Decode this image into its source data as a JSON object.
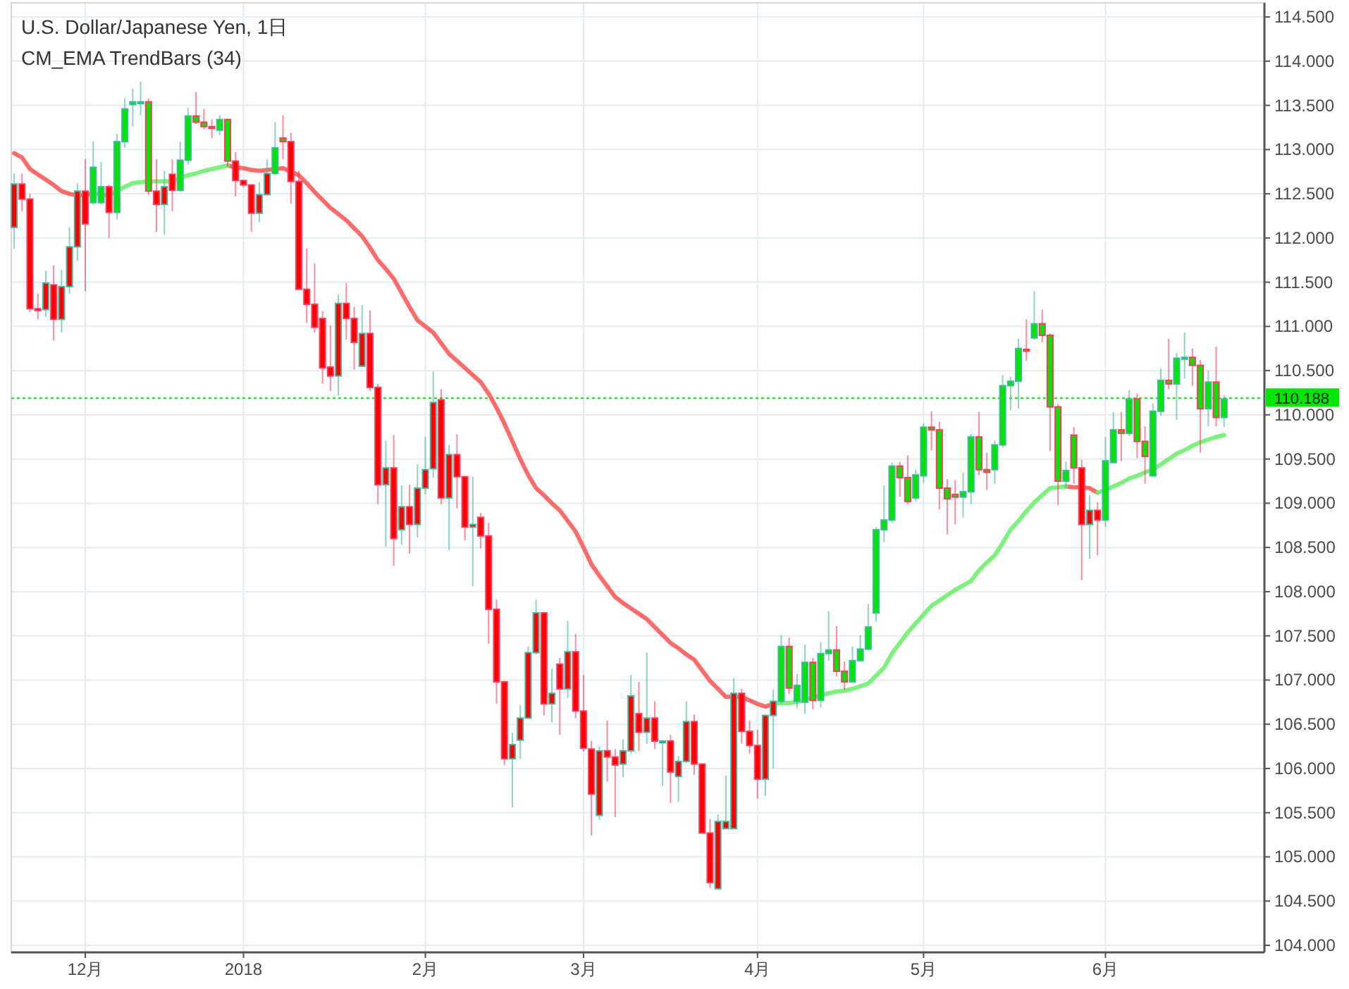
{
  "chart_data": {
    "type": "candlestick",
    "title": "U.S. Dollar/Japanese Yen, 1日",
    "annotations": [
      "CM_EMA TrendBars (34)"
    ],
    "categories": [
      null,
      null,
      null,
      null,
      null,
      null,
      null,
      null,
      null,
      "12月",
      null,
      null,
      null,
      null,
      null,
      null,
      null,
      null,
      null,
      null,
      null,
      null,
      null,
      null,
      null,
      null,
      null,
      null,
      null,
      "2018",
      null,
      null,
      null,
      null,
      null,
      null,
      null,
      null,
      null,
      null,
      null,
      null,
      null,
      null,
      null,
      null,
      null,
      null,
      null,
      null,
      null,
      null,
      "2月",
      null,
      null,
      null,
      null,
      null,
      null,
      null,
      null,
      null,
      null,
      null,
      null,
      null,
      null,
      null,
      null,
      null,
      null,
      null,
      "3月",
      null,
      null,
      null,
      null,
      null,
      null,
      null,
      null,
      null,
      null,
      null,
      null,
      null,
      null,
      null,
      null,
      null,
      null,
      null,
      null,
      null,
      "4月",
      null,
      null,
      null,
      null,
      null,
      null,
      null,
      null,
      null,
      null,
      null,
      null,
      null,
      null,
      null,
      null,
      null,
      null,
      null,
      null,
      "5月",
      null,
      null,
      null,
      null,
      null,
      null,
      null,
      null,
      null,
      null,
      null,
      null,
      null,
      null,
      null,
      null,
      null,
      null,
      null,
      null,
      null,
      null,
      "6月",
      null,
      null,
      null,
      null,
      null,
      null,
      null,
      null,
      null,
      null,
      null,
      null,
      null,
      null,
      null
    ],
    "ylim": [
      103.92,
      114.66
    ],
    "yticks": [
      {
        "value": 104,
        "label": "104.000"
      },
      {
        "value": 104.5,
        "label": "104.500"
      },
      {
        "value": 105,
        "label": "105.000"
      },
      {
        "value": 105.5,
        "label": "105.500"
      },
      {
        "value": 106,
        "label": "106.000"
      },
      {
        "value": 106.5,
        "label": "106.500"
      },
      {
        "value": 107,
        "label": "107.000"
      },
      {
        "value": 107.5,
        "label": "107.500"
      },
      {
        "value": 108,
        "label": "108.000"
      },
      {
        "value": 108.5,
        "label": "108.500"
      },
      {
        "value": 109,
        "label": "109.000"
      },
      {
        "value": 109.5,
        "label": "109.500"
      },
      {
        "value": 110,
        "label": "110.000"
      },
      {
        "value": 110.5,
        "label": "110.500"
      },
      {
        "value": 111,
        "label": "111.000"
      },
      {
        "value": 111.5,
        "label": "111.500"
      },
      {
        "value": 112,
        "label": "112.000"
      },
      {
        "value": 112.5,
        "label": "112.500"
      },
      {
        "value": 113,
        "label": "113.000"
      },
      {
        "value": 113.5,
        "label": "113.500"
      },
      {
        "value": 114,
        "label": "114.000"
      },
      {
        "value": 114.5,
        "label": "114.500"
      }
    ],
    "grid": true,
    "ref_lines": [
      {
        "axis": "y",
        "value": 110.188,
        "label": "110.188",
        "color": "#00e600",
        "line_style": "dotted"
      }
    ],
    "series": [
      {
        "ohlc": [
          [
            112.12,
            112.73,
            111.88,
            112.61
          ],
          [
            112.61,
            112.73,
            112.3,
            112.44
          ],
          [
            112.44,
            112.5,
            111.16,
            111.2
          ],
          [
            111.2,
            111.37,
            111.08,
            111.18
          ],
          [
            111.19,
            111.63,
            111.11,
            111.49
          ],
          [
            111.47,
            111.69,
            110.84,
            111.08
          ],
          [
            111.08,
            111.64,
            110.93,
            111.45
          ],
          [
            111.45,
            112.12,
            111.37,
            111.9
          ],
          [
            111.9,
            112.62,
            111.74,
            112.53
          ],
          [
            112.53,
            112.89,
            111.4,
            112.16
          ],
          [
            112.4,
            113.09,
            112.38,
            112.8
          ],
          [
            112.4,
            112.86,
            112.38,
            112.58
          ],
          [
            112.58,
            112.6,
            112.0,
            112.29
          ],
          [
            112.29,
            113.18,
            112.21,
            113.09
          ],
          [
            113.09,
            113.58,
            113.02,
            113.46
          ],
          [
            113.51,
            113.69,
            113.26,
            113.54
          ],
          [
            113.54,
            113.77,
            113.39,
            113.54
          ],
          [
            113.54,
            113.58,
            112.49,
            112.53
          ],
          [
            112.53,
            112.89,
            112.07,
            112.38
          ],
          [
            112.38,
            112.76,
            112.04,
            112.58
          ],
          [
            112.72,
            112.89,
            112.3,
            112.54
          ],
          [
            112.54,
            113.09,
            112.52,
            112.88
          ],
          [
            112.88,
            113.47,
            112.83,
            113.38
          ],
          [
            113.38,
            113.65,
            113.29,
            113.31
          ],
          [
            113.31,
            113.46,
            113.23,
            113.26
          ],
          [
            113.26,
            113.34,
            113.13,
            113.24
          ],
          [
            113.22,
            113.39,
            113.16,
            113.34
          ],
          [
            113.34,
            113.35,
            112.81,
            112.87
          ],
          [
            112.87,
            112.97,
            112.47,
            112.65
          ],
          [
            112.65,
            112.66,
            112.57,
            112.6
          ],
          [
            112.6,
            112.61,
            112.07,
            112.28
          ],
          [
            112.28,
            112.63,
            112.18,
            112.49
          ],
          [
            112.49,
            112.89,
            112.48,
            112.73
          ],
          [
            112.73,
            113.31,
            112.71,
            113.02
          ],
          [
            113.13,
            113.39,
            112.89,
            113.09
          ],
          [
            113.09,
            113.19,
            112.39,
            112.64
          ],
          [
            112.64,
            112.76,
            111.42,
            111.42
          ],
          [
            111.42,
            111.88,
            111.04,
            111.25
          ],
          [
            111.25,
            111.71,
            110.93,
            110.99
          ],
          [
            111.09,
            111.17,
            110.35,
            110.53
          ],
          [
            110.54,
            111.01,
            110.27,
            110.44
          ],
          [
            110.44,
            111.36,
            110.22,
            111.26
          ],
          [
            111.26,
            111.49,
            110.85,
            111.09
          ],
          [
            111.09,
            111.22,
            110.51,
            110.82
          ],
          [
            110.55,
            111.24,
            110.54,
            110.92
          ],
          [
            110.92,
            111.18,
            110.27,
            110.31
          ],
          [
            110.31,
            110.35,
            108.99,
            109.21
          ],
          [
            109.21,
            109.71,
            108.51,
            109.4
          ],
          [
            109.4,
            109.77,
            108.29,
            108.6
          ],
          [
            108.7,
            109.2,
            108.53,
            108.96
          ],
          [
            108.96,
            109.21,
            108.43,
            108.76
          ],
          [
            108.76,
            109.44,
            108.61,
            109.17
          ],
          [
            109.17,
            109.75,
            109.1,
            109.38
          ],
          [
            109.39,
            110.49,
            109.29,
            110.14
          ],
          [
            110.17,
            110.29,
            108.99,
            109.06
          ],
          [
            109.06,
            109.66,
            108.47,
            109.55
          ],
          [
            109.55,
            109.78,
            108.94,
            109.3
          ],
          [
            109.3,
            109.31,
            108.58,
            108.73
          ],
          [
            108.73,
            109.3,
            108.06,
            108.76
          ],
          [
            108.84,
            108.89,
            108.49,
            108.63
          ],
          [
            108.63,
            108.78,
            107.41,
            107.8
          ],
          [
            107.8,
            107.91,
            106.73,
            106.98
          ],
          [
            106.98,
            106.99,
            106.04,
            106.11
          ],
          [
            106.11,
            106.4,
            105.56,
            106.27
          ],
          [
            106.32,
            106.72,
            106.11,
            106.57
          ],
          [
            106.57,
            107.38,
            106.56,
            107.31
          ],
          [
            107.31,
            107.91,
            107.29,
            107.76
          ],
          [
            107.76,
            107.77,
            106.6,
            106.73
          ],
          [
            106.73,
            107.13,
            106.52,
            106.85
          ],
          [
            107.18,
            107.25,
            106.38,
            106.9
          ],
          [
            106.9,
            107.67,
            106.8,
            107.32
          ],
          [
            107.32,
            107.52,
            106.57,
            106.65
          ],
          [
            106.65,
            107.06,
            106.19,
            106.23
          ],
          [
            106.22,
            106.31,
            105.24,
            105.71
          ],
          [
            105.47,
            106.25,
            105.42,
            106.2
          ],
          [
            106.2,
            106.54,
            105.85,
            106.13
          ],
          [
            106.13,
            106.22,
            105.45,
            106.04
          ],
          [
            106.05,
            106.33,
            105.9,
            106.2
          ],
          [
            106.2,
            107.06,
            106.17,
            106.82
          ],
          [
            106.62,
            106.98,
            106.2,
            106.41
          ],
          [
            106.41,
            107.31,
            106.28,
            106.57
          ],
          [
            106.57,
            106.76,
            106.22,
            106.31
          ],
          [
            106.31,
            106.32,
            105.8,
            106.31
          ],
          [
            106.31,
            106.38,
            105.61,
            105.96
          ],
          [
            105.91,
            106.14,
            105.62,
            106.08
          ],
          [
            106.08,
            106.76,
            106.06,
            106.53
          ],
          [
            106.53,
            106.61,
            105.93,
            106.05
          ],
          [
            106.05,
            106.05,
            105.27,
            105.27
          ],
          [
            105.27,
            105.43,
            104.65,
            104.71
          ],
          [
            104.64,
            105.48,
            104.63,
            105.4
          ],
          [
            105.32,
            105.92,
            105.32,
            105.4
          ],
          [
            105.32,
            107.02,
            105.32,
            106.85
          ],
          [
            106.85,
            106.9,
            106.28,
            106.42
          ],
          [
            106.42,
            106.54,
            106.17,
            106.26
          ],
          [
            106.26,
            106.44,
            105.66,
            105.88
          ],
          [
            105.88,
            106.61,
            105.69,
            106.6
          ],
          [
            106.6,
            106.89,
            106.0,
            106.76
          ],
          [
            106.76,
            107.51,
            106.73,
            107.38
          ],
          [
            107.38,
            107.48,
            106.84,
            106.91
          ],
          [
            106.76,
            107.07,
            106.68,
            106.94
          ],
          [
            106.75,
            107.4,
            106.62,
            107.2
          ],
          [
            107.2,
            107.25,
            106.67,
            106.77
          ],
          [
            106.77,
            107.43,
            106.69,
            107.3
          ],
          [
            107.3,
            107.78,
            107.22,
            107.34
          ],
          [
            107.34,
            107.61,
            107.04,
            107.1
          ],
          [
            107.1,
            107.21,
            106.89,
            106.98
          ],
          [
            106.98,
            107.38,
            106.98,
            107.22
          ],
          [
            107.22,
            107.51,
            107.21,
            107.35
          ],
          [
            107.35,
            107.86,
            107.34,
            107.6
          ],
          [
            107.76,
            108.73,
            107.66,
            108.7
          ],
          [
            108.7,
            109.2,
            108.56,
            108.81
          ],
          [
            108.81,
            109.46,
            108.78,
            109.42
          ],
          [
            109.42,
            109.47,
            109.07,
            109.29
          ],
          [
            109.29,
            109.54,
            108.99,
            109.02
          ],
          [
            109.06,
            109.38,
            109.02,
            109.32
          ],
          [
            109.31,
            109.9,
            109.23,
            109.86
          ],
          [
            109.86,
            110.04,
            109.6,
            109.83
          ],
          [
            109.83,
            109.92,
            108.93,
            109.17
          ],
          [
            109.17,
            109.27,
            108.65,
            109.05
          ],
          [
            109.1,
            109.26,
            108.76,
            109.07
          ],
          [
            109.07,
            109.35,
            108.84,
            109.13
          ],
          [
            109.13,
            109.78,
            108.99,
            109.75
          ],
          [
            109.75,
            110.03,
            109.32,
            109.38
          ],
          [
            109.38,
            109.57,
            109.15,
            109.35
          ],
          [
            109.38,
            109.71,
            109.22,
            109.66
          ],
          [
            109.66,
            110.45,
            109.63,
            110.33
          ],
          [
            110.33,
            110.43,
            110.05,
            110.38
          ],
          [
            110.38,
            110.86,
            110.07,
            110.75
          ],
          [
            110.74,
            111.08,
            110.61,
            110.72
          ],
          [
            110.87,
            111.4,
            110.85,
            111.03
          ],
          [
            111.03,
            111.19,
            110.82,
            110.9
          ],
          [
            110.9,
            110.92,
            109.59,
            110.09
          ],
          [
            110.09,
            110.12,
            108.98,
            109.25
          ],
          [
            109.25,
            109.47,
            109.17,
            109.37
          ],
          [
            109.77,
            109.86,
            109.22,
            109.4
          ],
          [
            109.4,
            109.49,
            108.13,
            108.76
          ],
          [
            108.76,
            109.09,
            108.37,
            108.92
          ],
          [
            108.92,
            109.01,
            108.41,
            108.81
          ],
          [
            108.81,
            109.75,
            108.73,
            109.48
          ],
          [
            109.46,
            110.03,
            109.46,
            109.83
          ],
          [
            109.83,
            110.03,
            109.48,
            109.79
          ],
          [
            109.79,
            110.28,
            109.76,
            110.18
          ],
          [
            110.18,
            110.24,
            109.51,
            109.7
          ],
          [
            109.7,
            109.87,
            109.22,
            109.53
          ],
          [
            109.31,
            110.13,
            109.3,
            110.04
          ],
          [
            110.04,
            110.52,
            109.99,
            110.39
          ],
          [
            110.39,
            110.86,
            110.29,
            110.35
          ],
          [
            110.35,
            110.7,
            109.94,
            110.64
          ],
          [
            110.63,
            110.93,
            110.41,
            110.65
          ],
          [
            110.65,
            110.75,
            110.33,
            110.56
          ],
          [
            110.56,
            110.62,
            109.57,
            110.07
          ],
          [
            110.07,
            110.5,
            109.87,
            110.37
          ],
          [
            110.37,
            110.77,
            109.87,
            109.97
          ],
          [
            109.97,
            110.22,
            109.86,
            110.18
          ]
        ],
        "colors": [
          "#ff0000",
          "#ff0000",
          "#ff0000",
          "#ff0000",
          "#ff0000",
          "#ff0000",
          "#ff0000",
          "#ff0000",
          "#ff0000",
          "#ff0000",
          "#00e600",
          "#00e600",
          "#ff0000",
          "#00e600",
          "#00e600",
          "#00e600",
          "#00e600",
          "#00e600",
          "#ff0000",
          "#ff0000",
          "#ff0000",
          "#00e600",
          "#00e600",
          "#00e600",
          "#00e600",
          "#00e600",
          "#00e600",
          "#00e600",
          "#ff0000",
          "#ff0000",
          "#ff0000",
          "#ff0000",
          "#ff0000",
          "#00e600",
          "#00e600",
          "#ff0000",
          "#ff0000",
          "#ff0000",
          "#ff0000",
          "#ff0000",
          "#ff0000",
          "#ff0000",
          "#ff0000",
          "#ff0000",
          "#ff0000",
          "#ff0000",
          "#ff0000",
          "#ff0000",
          "#ff0000",
          "#ff0000",
          "#ff0000",
          "#ff0000",
          "#ff0000",
          "#ff0000",
          "#ff0000",
          "#ff0000",
          "#ff0000",
          "#ff0000",
          "#ff0000",
          "#ff0000",
          "#ff0000",
          "#ff0000",
          "#ff0000",
          "#ff0000",
          "#ff0000",
          "#ff0000",
          "#ff0000",
          "#ff0000",
          "#ff0000",
          "#ff0000",
          "#ff0000",
          "#ff0000",
          "#ff0000",
          "#ff0000",
          "#ff0000",
          "#ff0000",
          "#ff0000",
          "#ff0000",
          "#ff0000",
          "#ff0000",
          "#ff0000",
          "#ff0000",
          "#ff0000",
          "#ff0000",
          "#ff0000",
          "#ff0000",
          "#ff0000",
          "#ff0000",
          "#ff0000",
          "#ff0000",
          "#ff0000",
          "#ff0000",
          "#ff0000",
          "#ff0000",
          "#ff0000",
          "#ff0000",
          "#ff0000",
          "#00e600",
          "#00e600",
          "#00e600",
          "#00e600",
          "#00e600",
          "#00e600",
          "#00e600",
          "#00e600",
          "#00e600",
          "#00e600",
          "#00e600",
          "#00e600",
          "#00e600",
          "#00e600",
          "#00e600",
          "#00e600",
          "#00e600",
          "#00e600",
          "#00e600",
          "#00e600",
          "#00e600",
          "#00e600",
          "#00e600",
          "#00e600",
          "#00e600",
          "#00e600",
          "#00e600",
          "#00e600",
          "#00e600",
          "#00e600",
          "#00e600",
          "#00e600",
          "#00e600",
          "#00e600",
          "#00e600",
          "#00e600",
          "#00e600",
          "#00e600",
          "#ff0000",
          "#ff0000",
          "#ff0000",
          "#00e600",
          "#00e600",
          "#00e600",
          "#00e600",
          "#00e600",
          "#00e600",
          "#00e600",
          "#00e600",
          "#00e600",
          "#00e600",
          "#00e600",
          "#00e600",
          "#00e600",
          "#00e600",
          "#00e600",
          "#00e600"
        ]
      },
      {
        "type": "line",
        "color": "#ff5a5a",
        "values": [
          112.96,
          112.91,
          112.78,
          112.72,
          112.66,
          112.6,
          112.53,
          112.5,
          112.48,
          112.49,
          112.5,
          null,
          null,
          null,
          null,
          null,
          null,
          null,
          null,
          null,
          null,
          null,
          null,
          null,
          null,
          null,
          null,
          112.82,
          112.8,
          112.79,
          112.77,
          112.76,
          112.77,
          112.78,
          112.79,
          112.75,
          112.71,
          112.62,
          112.52,
          112.43,
          112.34,
          112.27,
          112.2,
          112.11,
          112.02,
          111.89,
          111.75,
          111.65,
          111.54,
          111.38,
          111.22,
          111.07,
          111.0,
          110.93,
          110.81,
          110.69,
          110.61,
          110.53,
          110.45,
          110.37,
          110.24,
          110.08,
          109.9,
          109.7,
          109.5,
          109.32,
          109.17,
          109.09,
          109.0,
          108.92,
          108.8,
          108.68,
          108.5,
          108.31,
          108.18,
          108.06,
          107.94,
          107.87,
          107.81,
          107.75,
          107.69,
          107.6,
          107.51,
          107.42,
          107.36,
          107.29,
          107.23,
          107.11,
          106.99,
          106.9,
          106.81,
          106.81,
          106.81,
          106.77,
          106.73,
          106.7,
          106.73,
          null,
          null,
          null,
          null,
          null,
          null,
          null,
          null,
          null,
          null,
          null,
          null,
          null,
          null,
          null,
          null,
          null,
          null,
          null,
          null,
          null,
          null,
          null,
          null,
          null,
          null,
          null,
          null,
          null,
          null,
          null,
          null,
          null,
          null,
          null,
          null,
          109.19,
          109.18,
          109.18,
          109.17,
          109.12,
          null,
          null,
          null,
          null,
          null,
          null,
          null,
          null,
          null,
          null,
          null,
          null,
          null,
          null,
          null,
          null
        ]
      },
      {
        "type": "line",
        "color": "#6ff06f",
        "values": [
          null,
          null,
          null,
          null,
          null,
          null,
          null,
          null,
          null,
          null,
          112.5,
          112.49,
          112.48,
          112.53,
          112.58,
          112.62,
          112.63,
          112.64,
          112.64,
          112.64,
          112.64,
          112.68,
          112.71,
          112.73,
          112.76,
          112.78,
          112.8,
          112.82,
          null,
          null,
          null,
          null,
          null,
          null,
          null,
          null,
          null,
          null,
          null,
          null,
          null,
          null,
          null,
          null,
          null,
          null,
          null,
          null,
          null,
          null,
          null,
          null,
          null,
          null,
          null,
          null,
          null,
          null,
          null,
          null,
          null,
          null,
          null,
          null,
          null,
          null,
          null,
          null,
          null,
          null,
          null,
          null,
          null,
          null,
          null,
          null,
          null,
          null,
          null,
          null,
          null,
          null,
          null,
          null,
          null,
          null,
          null,
          null,
          null,
          null,
          null,
          null,
          null,
          null,
          null,
          null,
          106.73,
          106.74,
          106.74,
          106.75,
          106.78,
          106.8,
          106.83,
          106.85,
          106.87,
          106.88,
          106.9,
          106.93,
          106.96,
          107.05,
          107.14,
          107.3,
          107.42,
          107.54,
          107.64,
          107.74,
          107.84,
          107.9,
          107.96,
          108.02,
          108.07,
          108.12,
          108.24,
          108.33,
          108.41,
          108.55,
          108.7,
          108.8,
          108.91,
          109.01,
          109.09,
          109.17,
          109.18,
          109.19,
          null,
          null,
          null,
          109.12,
          109.15,
          109.19,
          109.23,
          109.28,
          109.31,
          109.35,
          109.38,
          109.44,
          109.5,
          109.56,
          109.6,
          109.65,
          109.69,
          109.72,
          109.75,
          109.77
        ]
      }
    ]
  }
}
